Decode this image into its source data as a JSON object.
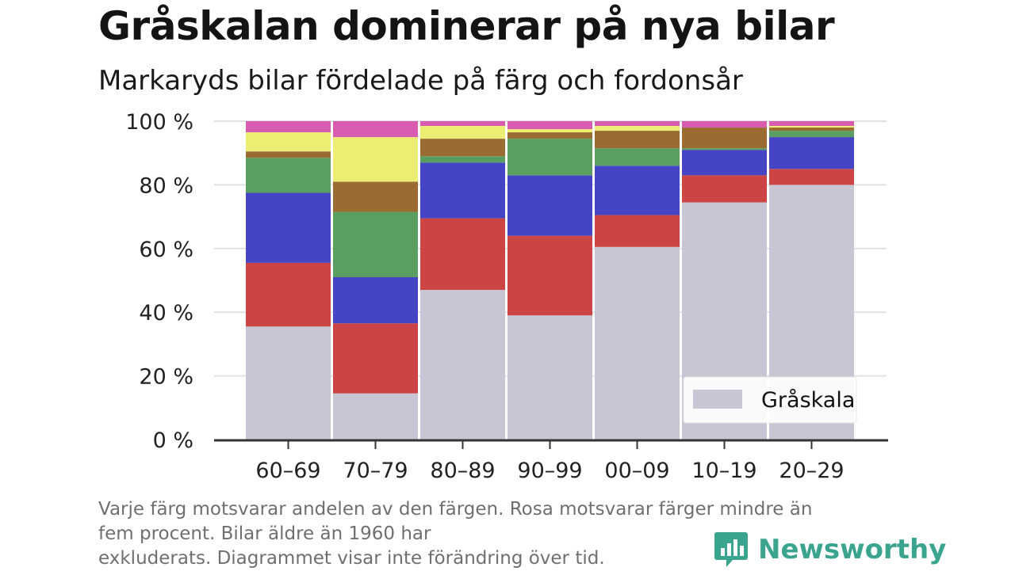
{
  "title": "Gråskalan dominerar på nya bilar",
  "subtitle": "Markaryds bilar fördelade på färg och fordonsår",
  "footnote": [
    "Varje färg motsvarar andelen av den färgen. Rosa motsvarar färger mindre än",
    "fem procent. Bilar äldre än 1960 har",
    "exkluderats. Diagrammet visar inte förändring över tid."
  ],
  "brand": {
    "name": "Newsworthy",
    "icon": "bar-chart-bubble-icon",
    "color": "#3aa48f"
  },
  "chart_data": {
    "type": "bar",
    "stacked": true,
    "categories": [
      "60–69",
      "70–79",
      "80–89",
      "90–99",
      "00–09",
      "10–19",
      "20–29"
    ],
    "ylim": [
      0,
      100
    ],
    "y_ticks": [
      "0 %",
      "20 %",
      "40 %",
      "60 %",
      "80 %",
      "100 %"
    ],
    "grid": true,
    "legend": {
      "position": "bottom-right",
      "visible_entries": [
        "Gråskala"
      ]
    },
    "series": [
      {
        "name": "Gråskala",
        "color": "#c8c6d4",
        "values": [
          35.5,
          14.5,
          47,
          39,
          60.5,
          74.5,
          80
        ]
      },
      {
        "color": "#cc4444",
        "values": [
          20,
          22,
          22.5,
          25,
          10,
          8.5,
          5
        ]
      },
      {
        "color": "#4444c4",
        "values": [
          22,
          14.5,
          17.5,
          19,
          15.5,
          8,
          10
        ]
      },
      {
        "color": "#5a9e62",
        "values": [
          11,
          20.5,
          2,
          11.5,
          5.5,
          0.5,
          2
        ]
      },
      {
        "color": "#9a6c32",
        "values": [
          2,
          9.5,
          5.5,
          2,
          5.5,
          6.5,
          1
        ]
      },
      {
        "color": "#ecee74",
        "values": [
          6,
          14,
          4,
          1,
          1.5,
          0,
          0.5
        ]
      },
      {
        "color": "#d85cb0",
        "values": [
          3.5,
          5,
          1.5,
          2.5,
          1.5,
          2,
          1.5
        ]
      }
    ]
  }
}
